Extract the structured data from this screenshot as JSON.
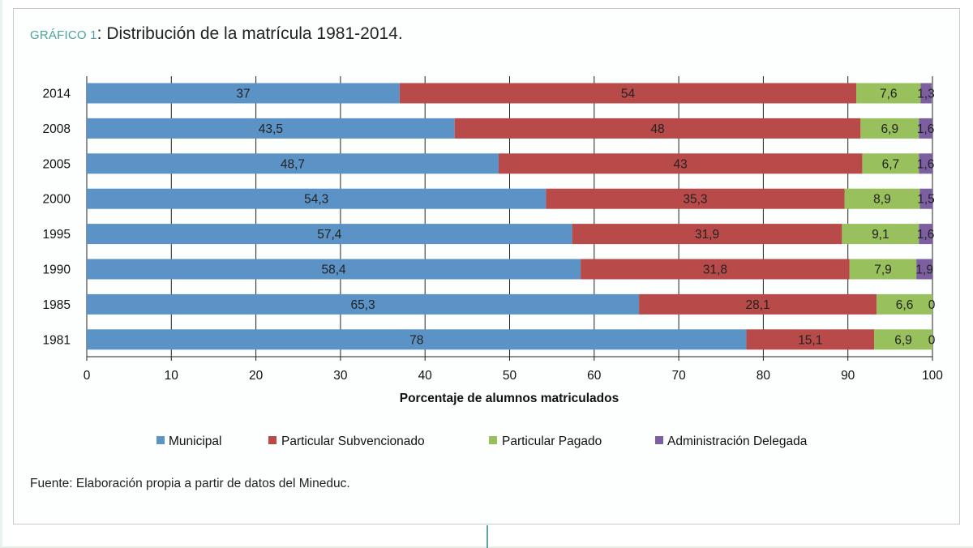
{
  "title": {
    "label": "GRÁFICO 1",
    "separator": ": ",
    "text": "Distribución de la matrícula 1981-2014."
  },
  "source": "Fuente: Elaboración propia a partir de datos del Mineduc.",
  "chart_data": {
    "type": "bar",
    "orientation": "horizontal",
    "stacked": true,
    "categories": [
      "2014",
      "2008",
      "2005",
      "2000",
      "1995",
      "1990",
      "1985",
      "1981"
    ],
    "series": [
      {
        "name": "Municipal",
        "color": "#5b93c7",
        "values": [
          37,
          43.5,
          48.7,
          54.3,
          57.4,
          58.4,
          65.3,
          78
        ],
        "labels": [
          "37",
          "43,5",
          "48,7",
          "54,3",
          "57,4",
          "58,4",
          "65,3",
          "78"
        ]
      },
      {
        "name": "Particular Subvencionado",
        "color": "#b84a4a",
        "values": [
          54,
          48,
          43,
          35.3,
          31.9,
          31.8,
          28.1,
          15.1
        ],
        "labels": [
          "54",
          "48",
          "43",
          "35,3",
          "31,9",
          "31,8",
          "28,1",
          "15,1"
        ]
      },
      {
        "name": "Particular Pagado",
        "color": "#98c05c",
        "values": [
          7.6,
          6.9,
          6.7,
          8.9,
          9.1,
          7.9,
          6.6,
          6.9
        ],
        "labels": [
          "7,6",
          "6,9",
          "6,7",
          "8,9",
          "9,1",
          "7,9",
          "6,6",
          "6,9"
        ]
      },
      {
        "name": "Administración Delegada",
        "color": "#7c5fa0",
        "values": [
          1.3,
          1.6,
          1.6,
          1.5,
          1.6,
          1.9,
          0,
          0
        ],
        "labels": [
          "1,3",
          "1,6",
          "1,6",
          "1,5",
          "1,6",
          "1,9",
          "0",
          "0"
        ]
      }
    ],
    "xlim": [
      0,
      100
    ],
    "xticks": [
      "0",
      "10",
      "20",
      "30",
      "40",
      "50",
      "60",
      "70",
      "80",
      "90",
      "100"
    ],
    "xlabel": "Porcentaje de alumnos matriculados",
    "ylabel": "",
    "grid": true,
    "legend_position": "bottom"
  }
}
